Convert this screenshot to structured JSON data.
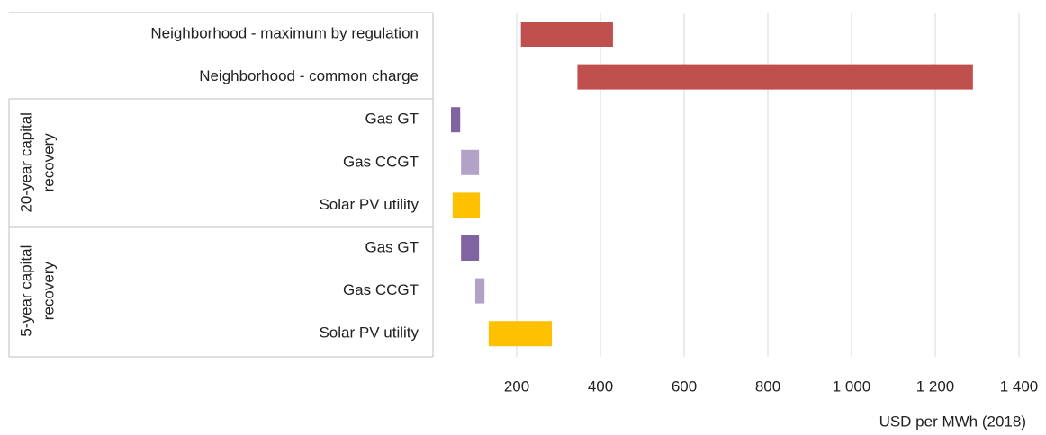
{
  "chart_data": {
    "type": "floating-bar",
    "categories": [
      "Neighborhood - maximum by regulation",
      "Neighborhood - common charge",
      "Gas GT",
      "Gas CCGT",
      "Solar PV utility",
      "Gas GT",
      "Gas CCGT",
      "Solar PV utility"
    ],
    "groups": [
      {
        "lines": [
          "20-year capital",
          "recovery"
        ],
        "first": 2,
        "last": 4
      },
      {
        "lines": [
          "5-year capital",
          "recovery"
        ],
        "first": 5,
        "last": 7
      }
    ],
    "ranges": [
      [
        210,
        430
      ],
      [
        345,
        1290
      ],
      [
        43,
        65
      ],
      [
        67,
        110
      ],
      [
        47,
        112
      ],
      [
        67,
        110
      ],
      [
        101,
        123
      ],
      [
        133,
        284
      ]
    ],
    "colors": [
      "#c0504d",
      "#c0504d",
      "#8064a2",
      "#b3a2c7",
      "#ffc000",
      "#8064a2",
      "#b3a2c7",
      "#ffc000"
    ],
    "xlim": [
      0,
      1400
    ],
    "xticks": [
      200,
      400,
      600,
      800,
      {
        "value": 1000,
        "label": "1 000"
      },
      {
        "value": 1200,
        "label": "1 200"
      },
      {
        "value": 1400,
        "label": "1 400"
      }
    ],
    "x_label": "USD per MWh (2018)",
    "grid": true
  }
}
